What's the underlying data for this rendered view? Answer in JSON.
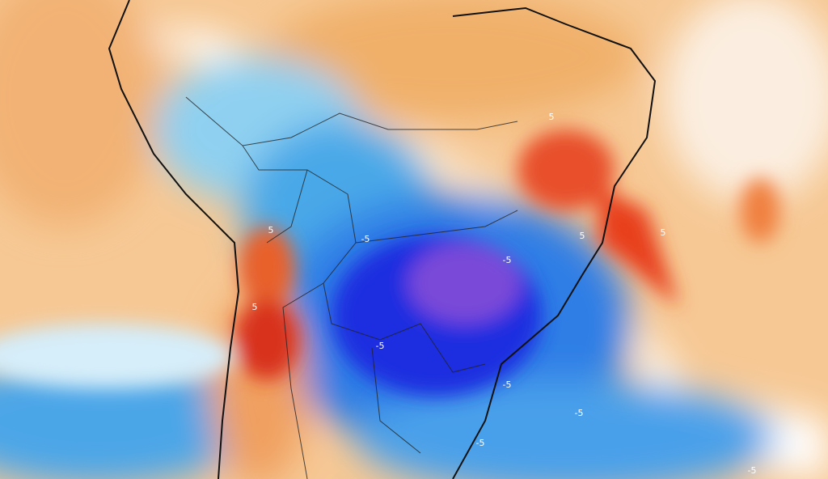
{
  "map": {
    "contour_labels": [
      "5",
      "5",
      "5",
      "5",
      "5",
      "-5",
      "-5",
      "-5",
      "-5",
      "-5",
      "-5",
      "-5"
    ]
  }
}
